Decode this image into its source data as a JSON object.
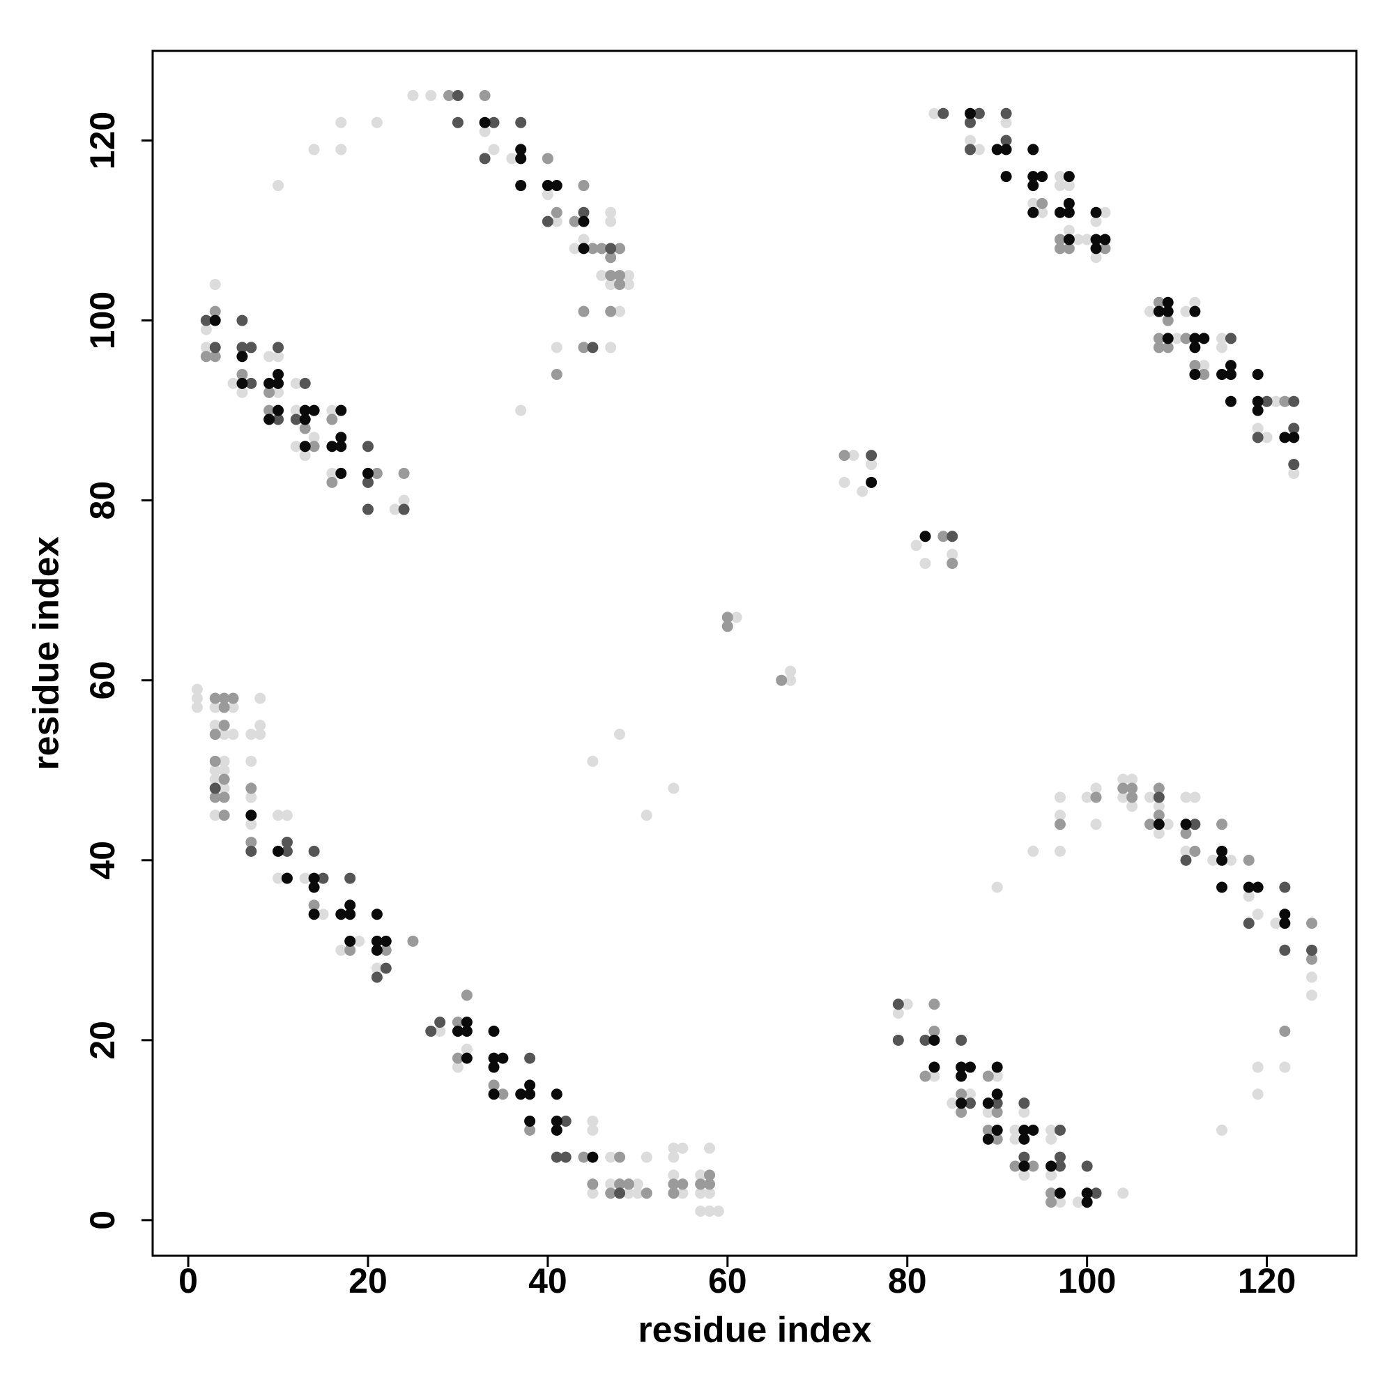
{
  "chart_data": {
    "type": "scatter",
    "x_label": "residue index",
    "y_label": "residue index",
    "xlim": [
      -3.96,
      129.96
    ],
    "ylim": [
      -3.96,
      129.96
    ],
    "xticks": [
      0,
      20,
      40,
      60,
      80,
      100,
      120
    ],
    "yticks": [
      0,
      20,
      40,
      60,
      80,
      100,
      120
    ],
    "grid": false,
    "series": [
      {
        "color": "#dcdcdc",
        "x": [
          3,
          2,
          2,
          5,
          6,
          9,
          10,
          10,
          12,
          12,
          14,
          13,
          12,
          16,
          16,
          23,
          24,
          10,
          14,
          17,
          17,
          21,
          25,
          27,
          33,
          34,
          36,
          40,
          41,
          43,
          44,
          47,
          47,
          46,
          47,
          49,
          49,
          48,
          41,
          47,
          37,
          83,
          91,
          87,
          88,
          94,
          95,
          97,
          97,
          98,
          98,
          99,
          100,
          101,
          102,
          101,
          107,
          111,
          112,
          110,
          113,
          115,
          115,
          119,
          120,
          121,
          123,
          74,
          73,
          75,
          76,
          81,
          82,
          85,
          61,
          67,
          67,
          45,
          48,
          51,
          54,
          90,
          115,
          1,
          1,
          1,
          3,
          5,
          3,
          4,
          5,
          8,
          8,
          8,
          7,
          7,
          4,
          3,
          4,
          3,
          4,
          3,
          7,
          7,
          10,
          11,
          10,
          13,
          15,
          17,
          19,
          21,
          28,
          30,
          31,
          45,
          45,
          45,
          47,
          47,
          49,
          50,
          50,
          51,
          54,
          55,
          54,
          54,
          55,
          57,
          57,
          58,
          58,
          57,
          58,
          59,
          80,
          79,
          83,
          85,
          87,
          90,
          89,
          92,
          92,
          93,
          93,
          96,
          96,
          96,
          97,
          99,
          104,
          94,
          97,
          97,
          97,
          100,
          101,
          101,
          104,
          105,
          104,
          105,
          107,
          108,
          108,
          109,
          111,
          112,
          111,
          114,
          116,
          118,
          119,
          121,
          125,
          125,
          122,
          119,
          119
        ],
        "values": [
          104,
          99,
          97,
          93,
          92,
          96,
          96,
          92,
          90,
          93,
          87,
          85,
          86,
          90,
          83,
          79,
          80,
          115,
          119,
          119,
          122,
          122,
          125,
          125,
          121,
          119,
          118,
          114,
          111,
          108,
          109,
          112,
          111,
          105,
          104,
          105,
          104,
          101,
          97,
          97,
          90,
          123,
          122,
          120,
          119,
          113,
          112,
          116,
          115,
          115,
          110,
          109,
          109,
          107,
          112,
          111,
          101,
          101,
          102,
          98,
          95,
          98,
          97,
          88,
          87,
          91,
          83,
          85,
          82,
          81,
          84,
          75,
          73,
          74,
          67,
          61,
          60,
          51,
          54,
          45,
          48,
          37,
          10,
          59,
          58,
          57,
          57,
          57,
          55,
          54,
          54,
          58,
          55,
          54,
          54,
          51,
          51,
          50,
          50,
          49,
          48,
          45,
          47,
          44,
          45,
          45,
          38,
          38,
          34,
          30,
          31,
          28,
          21,
          17,
          19,
          11,
          10,
          3,
          7,
          4,
          3,
          4,
          3,
          7,
          8,
          8,
          7,
          5,
          3,
          5,
          3,
          3,
          8,
          1,
          1,
          1,
          24,
          23,
          16,
          13,
          14,
          16,
          12,
          10,
          9,
          12,
          5,
          10,
          9,
          5,
          2,
          2,
          3,
          41,
          47,
          45,
          41,
          47,
          48,
          44,
          49,
          49,
          47,
          46,
          47,
          46,
          43,
          44,
          47,
          47,
          41,
          40,
          40,
          36,
          34,
          33,
          27,
          25,
          17,
          17,
          14
        ]
      },
      {
        "color": "#9a9a9a",
        "x": [
          3,
          2,
          3,
          6,
          9,
          9,
          13,
          14,
          16,
          16,
          21,
          24,
          29,
          33,
          40,
          41,
          43,
          44,
          45,
          46,
          48,
          47,
          47,
          48,
          48,
          44,
          47,
          44,
          41,
          95,
          97,
          97,
          98,
          102,
          108,
          108,
          108,
          109,
          109,
          111,
          112,
          113,
          122,
          73,
          84,
          85,
          60,
          60,
          66,
          3,
          4,
          5,
          4,
          4,
          3,
          3,
          4,
          3,
          4,
          4,
          7,
          7,
          14,
          18,
          22,
          25,
          30,
          31,
          30,
          34,
          35,
          38,
          44,
          45,
          48,
          47,
          48,
          49,
          51,
          54,
          55,
          54,
          58,
          57,
          58,
          83,
          83,
          82,
          86,
          86,
          89,
          90,
          89,
          90,
          92,
          94,
          96,
          96,
          97,
          101,
          104,
          105,
          105,
          108,
          108,
          107,
          111,
          112,
          115,
          118,
          125,
          125,
          122
        ],
        "values": [
          101,
          96,
          96,
          94,
          92,
          90,
          88,
          86,
          89,
          82,
          83,
          83,
          125,
          125,
          118,
          112,
          111,
          115,
          108,
          108,
          108,
          107,
          105,
          105,
          104,
          101,
          101,
          97,
          94,
          113,
          109,
          108,
          108,
          108,
          102,
          98,
          97,
          97,
          100,
          98,
          95,
          94,
          91,
          85,
          76,
          73,
          67,
          66,
          60,
          58,
          58,
          58,
          57,
          55,
          54,
          51,
          49,
          47,
          47,
          45,
          48,
          42,
          35,
          30,
          30,
          31,
          22,
          25,
          18,
          15,
          14,
          10,
          7,
          4,
          7,
          3,
          4,
          4,
          3,
          4,
          4,
          3,
          5,
          4,
          4,
          21,
          24,
          16,
          14,
          12,
          16,
          12,
          10,
          9,
          6,
          6,
          3,
          2,
          44,
          47,
          48,
          48,
          47,
          48,
          45,
          44,
          43,
          41,
          44,
          40,
          33,
          29,
          21
        ]
      },
      {
        "color": "#555555",
        "x": [
          2,
          3,
          6,
          6,
          7,
          7,
          10,
          10,
          13,
          12,
          20,
          20,
          20,
          24,
          30,
          30,
          34,
          33,
          37,
          40,
          44,
          47,
          45,
          84,
          88,
          91,
          87,
          87,
          91,
          116,
          120,
          119,
          123,
          123,
          123,
          76,
          85,
          3,
          7,
          11,
          11,
          14,
          15,
          18,
          22,
          21,
          27,
          28,
          38,
          42,
          41,
          42,
          48,
          79,
          79,
          82,
          86,
          87,
          90,
          93,
          93,
          97,
          97,
          97,
          101,
          100,
          108,
          112,
          111,
          118,
          122,
          122,
          125
        ],
        "values": [
          100,
          97,
          100,
          97,
          97,
          93,
          97,
          89,
          93,
          89,
          86,
          82,
          79,
          79,
          125,
          122,
          122,
          118,
          122,
          111,
          112,
          108,
          97,
          123,
          123,
          123,
          122,
          119,
          120,
          98,
          91,
          87,
          91,
          88,
          84,
          85,
          76,
          48,
          41,
          41,
          42,
          41,
          38,
          38,
          28,
          27,
          21,
          22,
          18,
          11,
          7,
          7,
          3,
          24,
          20,
          20,
          20,
          13,
          13,
          13,
          7,
          10,
          6,
          7,
          3,
          6,
          47,
          44,
          40,
          33,
          37,
          30,
          30
        ]
      },
      {
        "color": "#0a0a0a",
        "x": [
          3,
          6,
          6,
          9,
          10,
          10,
          10,
          9,
          13,
          14,
          13,
          13,
          17,
          17,
          16,
          17,
          17,
          20,
          33,
          37,
          37,
          37,
          40,
          41,
          44,
          44,
          87,
          90,
          91,
          94,
          91,
          94,
          95,
          94,
          94,
          98,
          98,
          97,
          98,
          98,
          101,
          102,
          101,
          101,
          109,
          108,
          109,
          112,
          109,
          112,
          113,
          112,
          112,
          116,
          115,
          116,
          116,
          119,
          119,
          119,
          122,
          123,
          76,
          82,
          7,
          10,
          11,
          14,
          14,
          14,
          17,
          18,
          18,
          18,
          21,
          21,
          22,
          21,
          31,
          30,
          31,
          31,
          34,
          34,
          35,
          34,
          34,
          37,
          38,
          38,
          38,
          41,
          41,
          41,
          45,
          83,
          83,
          86,
          87,
          86,
          86,
          90,
          89,
          90,
          90,
          89,
          93,
          94,
          93,
          93,
          96,
          97,
          100,
          100,
          108,
          111,
          115,
          115,
          115,
          118,
          119,
          122,
          122
        ],
        "values": [
          100,
          96,
          93,
          93,
          94,
          93,
          90,
          89,
          90,
          90,
          89,
          86,
          90,
          87,
          86,
          86,
          83,
          83,
          122,
          119,
          118,
          115,
          115,
          115,
          111,
          108,
          123,
          119,
          119,
          119,
          116,
          116,
          116,
          115,
          112,
          116,
          113,
          112,
          112,
          109,
          109,
          109,
          108,
          112,
          102,
          101,
          101,
          101,
          98,
          98,
          98,
          97,
          94,
          95,
          94,
          94,
          91,
          94,
          91,
          90,
          87,
          87,
          82,
          76,
          45,
          41,
          38,
          38,
          37,
          34,
          34,
          34,
          35,
          31,
          34,
          31,
          31,
          30,
          22,
          21,
          21,
          18,
          21,
          18,
          18,
          17,
          14,
          14,
          15,
          14,
          11,
          14,
          11,
          10,
          7,
          20,
          17,
          17,
          17,
          16,
          13,
          17,
          13,
          14,
          10,
          9,
          10,
          10,
          9,
          6,
          6,
          3,
          3,
          2,
          44,
          44,
          41,
          40,
          37,
          37,
          37,
          34,
          33
        ]
      }
    ]
  }
}
